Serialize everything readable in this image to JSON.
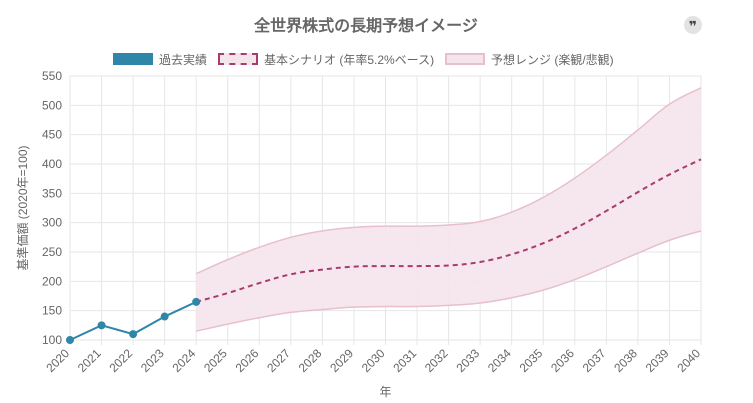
{
  "header": {
    "title": "全世界株式の長期予想イメージ",
    "quote_icon": "quote-icon",
    "quote_glyph": "❞"
  },
  "colors": {
    "actual": "#2e86a8",
    "scenario": "#a83b6f",
    "range_border": "#e7bfd0",
    "range_fill": "#f5e4ec",
    "grid": "#e6e6e6"
  },
  "chart_data": {
    "type": "line",
    "title": "全世界株式の長期予想イメージ",
    "xlabel": "年",
    "ylabel": "基準価額 (2020年=100)",
    "ylim": [
      100,
      550
    ],
    "yticks": [
      100,
      150,
      200,
      250,
      300,
      350,
      400,
      450,
      500,
      550
    ],
    "categories": [
      "2020",
      "2021",
      "2022",
      "2023",
      "2024",
      "2025",
      "2026",
      "2027",
      "2028",
      "2029",
      "2030",
      "2031",
      "2032",
      "2033",
      "2034",
      "2035",
      "2036",
      "2037",
      "2038",
      "2039",
      "2040"
    ],
    "legend": [
      {
        "label": "過去実績",
        "style": "solid"
      },
      {
        "label": "基本シナリオ (年率5.2%ベース)",
        "style": "dashed"
      },
      {
        "label": "予想レンジ (楽観/悲観)",
        "style": "band"
      }
    ],
    "series": [
      {
        "name": "過去実績",
        "values": [
          100,
          125,
          110,
          140,
          165,
          null,
          null,
          null,
          null,
          null,
          null,
          null,
          null,
          null,
          null,
          null,
          null,
          null,
          null,
          null,
          null
        ]
      },
      {
        "name": "基本シナリオ (年率5.2%ベース)",
        "values": [
          null,
          null,
          null,
          null,
          165,
          180,
          197,
          212,
          220,
          225,
          226,
          226,
          227,
          233,
          246,
          265,
          290,
          320,
          352,
          382,
          408
        ]
      },
      {
        "name": "楽観",
        "values": [
          null,
          null,
          null,
          null,
          213,
          237,
          258,
          275,
          286,
          292,
          294,
          294,
          296,
          302,
          318,
          343,
          376,
          415,
          458,
          502,
          530
        ]
      },
      {
        "name": "悲観",
        "values": [
          null,
          null,
          null,
          null,
          115,
          127,
          138,
          147,
          152,
          156,
          157,
          157,
          159,
          163,
          172,
          185,
          203,
          225,
          248,
          270,
          286
        ]
      }
    ]
  }
}
